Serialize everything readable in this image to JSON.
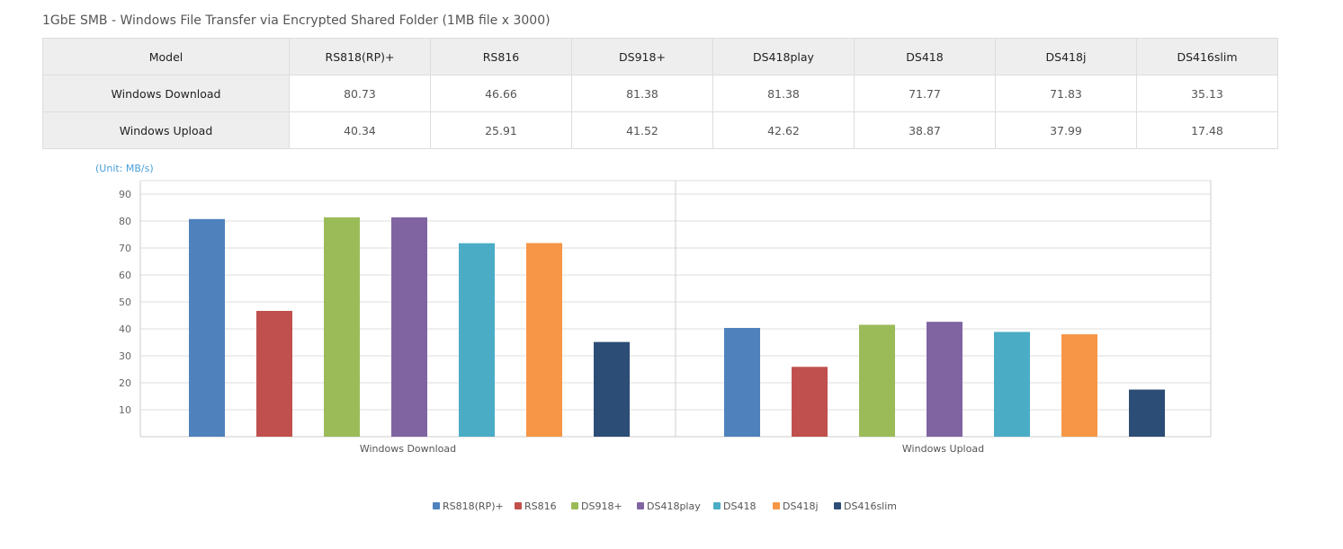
{
  "title": "1GbE SMB - Windows File Transfer via Encrypted Shared Folder (1MB file x 3000)",
  "table": {
    "header": [
      "Model",
      "RS818(RP)+",
      "RS816",
      "DS918+",
      "DS418play",
      "DS418",
      "DS418j",
      "DS416slim"
    ],
    "rows": [
      {
        "label": "Windows Download",
        "values": [
          "80.73",
          "46.66",
          "81.38",
          "81.38",
          "71.77",
          "71.83",
          "35.13"
        ]
      },
      {
        "label": "Windows Upload",
        "values": [
          "40.34",
          "25.91",
          "41.52",
          "42.62",
          "38.87",
          "37.99",
          "17.48"
        ]
      }
    ]
  },
  "chart_data": {
    "type": "bar",
    "unit_label": "(Unit: MB/s)",
    "categories": [
      "Windows Download",
      "Windows Upload"
    ],
    "ylim": [
      0,
      95
    ],
    "yticks": [
      10,
      20,
      30,
      40,
      50,
      60,
      70,
      80,
      90
    ],
    "legend_position": "bottom",
    "series": [
      {
        "name": "RS818(RP)+",
        "color": "#4f81bd",
        "values": [
          80.73,
          40.34
        ]
      },
      {
        "name": "RS816",
        "color": "#c0504d",
        "values": [
          46.66,
          25.91
        ]
      },
      {
        "name": "DS918+",
        "color": "#9bbb59",
        "values": [
          81.38,
          41.52
        ]
      },
      {
        "name": "DS418play",
        "color": "#8064a2",
        "values": [
          81.38,
          42.62
        ]
      },
      {
        "name": "DS418",
        "color": "#4bacc6",
        "values": [
          71.77,
          38.87
        ]
      },
      {
        "name": "DS418j",
        "color": "#f79646",
        "values": [
          71.83,
          37.99
        ]
      },
      {
        "name": "DS416slim",
        "color": "#2c4d75",
        "values": [
          35.13,
          17.48
        ]
      }
    ]
  }
}
